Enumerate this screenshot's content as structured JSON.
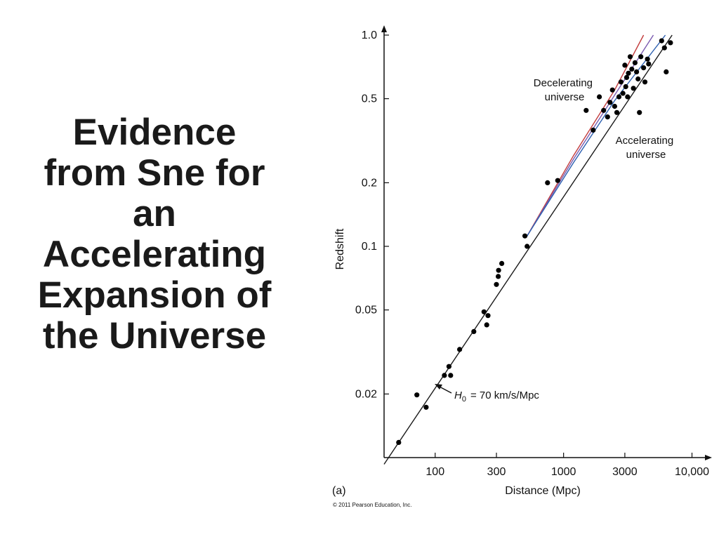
{
  "title": {
    "lines": [
      "Evidence",
      "from Sne for",
      "an",
      "Accelerating",
      "Expansion of",
      "the Universe"
    ]
  },
  "chart_data": {
    "type": "scatter",
    "panel_label": "(a)",
    "xlabel": "Distance (Mpc)",
    "ylabel": "Redshift",
    "xscale": "log",
    "yscale": "log",
    "xlim": [
      40,
      12000
    ],
    "ylim": [
      0.01,
      1.0
    ],
    "xticks": [
      100,
      300,
      1000,
      3000,
      10000
    ],
    "xtick_labels": [
      "100",
      "300",
      "1000",
      "3000",
      "10,000"
    ],
    "yticks": [
      0.02,
      0.05,
      0.1,
      0.2,
      0.5,
      1.0
    ],
    "ytick_labels": [
      "0.02",
      "0.05",
      "0.1",
      "0.2",
      "0.5",
      "1.0"
    ],
    "grid": false,
    "annotations": {
      "hubble": "= 70 km/s/Mpc",
      "hubble_symbol": "H",
      "hubble_subscript": "0",
      "decelerating": [
        "Decelerating",
        "universe"
      ],
      "accelerating": [
        "Accelerating",
        "universe"
      ]
    },
    "curves": [
      {
        "label": "hubble law",
        "color": "#1a1a1a",
        "points": [
          [
            40,
            0.0093
          ],
          [
            7000,
            1.0
          ]
        ]
      },
      {
        "label": "decelerating",
        "color": "#c23b3b",
        "points": [
          [
            520,
            0.112
          ],
          [
            1200,
            0.27
          ],
          [
            2500,
            0.55
          ],
          [
            4200,
            1.0
          ]
        ]
      },
      {
        "label": "intermediate",
        "color": "#7a5bb0",
        "points": [
          [
            520,
            0.112
          ],
          [
            1200,
            0.26
          ],
          [
            2500,
            0.52
          ],
          [
            5000,
            1.0
          ]
        ]
      },
      {
        "label": "accelerating",
        "color": "#2c5fb0",
        "points": [
          [
            520,
            0.112
          ],
          [
            1200,
            0.25
          ],
          [
            2500,
            0.49
          ],
          [
            6200,
            1.0
          ]
        ]
      }
    ],
    "points": [
      [
        52,
        0.0118
      ],
      [
        72,
        0.0198
      ],
      [
        85,
        0.0173
      ],
      [
        118,
        0.0245
      ],
      [
        128,
        0.027
      ],
      [
        132,
        0.0245
      ],
      [
        155,
        0.0325
      ],
      [
        200,
        0.0395
      ],
      [
        240,
        0.049
      ],
      [
        252,
        0.0425
      ],
      [
        258,
        0.047
      ],
      [
        300,
        0.066
      ],
      [
        310,
        0.072
      ],
      [
        330,
        0.083
      ],
      [
        312,
        0.077
      ],
      [
        500,
        0.112
      ],
      [
        520,
        0.1
      ],
      [
        750,
        0.2
      ],
      [
        900,
        0.205
      ],
      [
        1500,
        0.44
      ],
      [
        1700,
        0.355
      ],
      [
        1900,
        0.51
      ],
      [
        2050,
        0.44
      ],
      [
        2200,
        0.41
      ],
      [
        2300,
        0.48
      ],
      [
        2400,
        0.55
      ],
      [
        2500,
        0.46
      ],
      [
        2600,
        0.43
      ],
      [
        2700,
        0.51
      ],
      [
        2800,
        0.6
      ],
      [
        2900,
        0.53
      ],
      [
        3000,
        0.72
      ],
      [
        3050,
        0.57
      ],
      [
        3100,
        0.63
      ],
      [
        3150,
        0.51
      ],
      [
        3200,
        0.66
      ],
      [
        3300,
        0.79
      ],
      [
        3400,
        0.69
      ],
      [
        3500,
        0.56
      ],
      [
        3600,
        0.74
      ],
      [
        3700,
        0.67
      ],
      [
        3800,
        0.62
      ],
      [
        3900,
        0.43
      ],
      [
        4000,
        0.79
      ],
      [
        4200,
        0.7
      ],
      [
        4300,
        0.6
      ],
      [
        4500,
        0.77
      ],
      [
        4600,
        0.73
      ],
      [
        5800,
        0.94
      ],
      [
        6100,
        0.87
      ],
      [
        6300,
        0.67
      ],
      [
        6800,
        0.92
      ]
    ]
  },
  "credit": "© 2011 Pearson Education, Inc."
}
